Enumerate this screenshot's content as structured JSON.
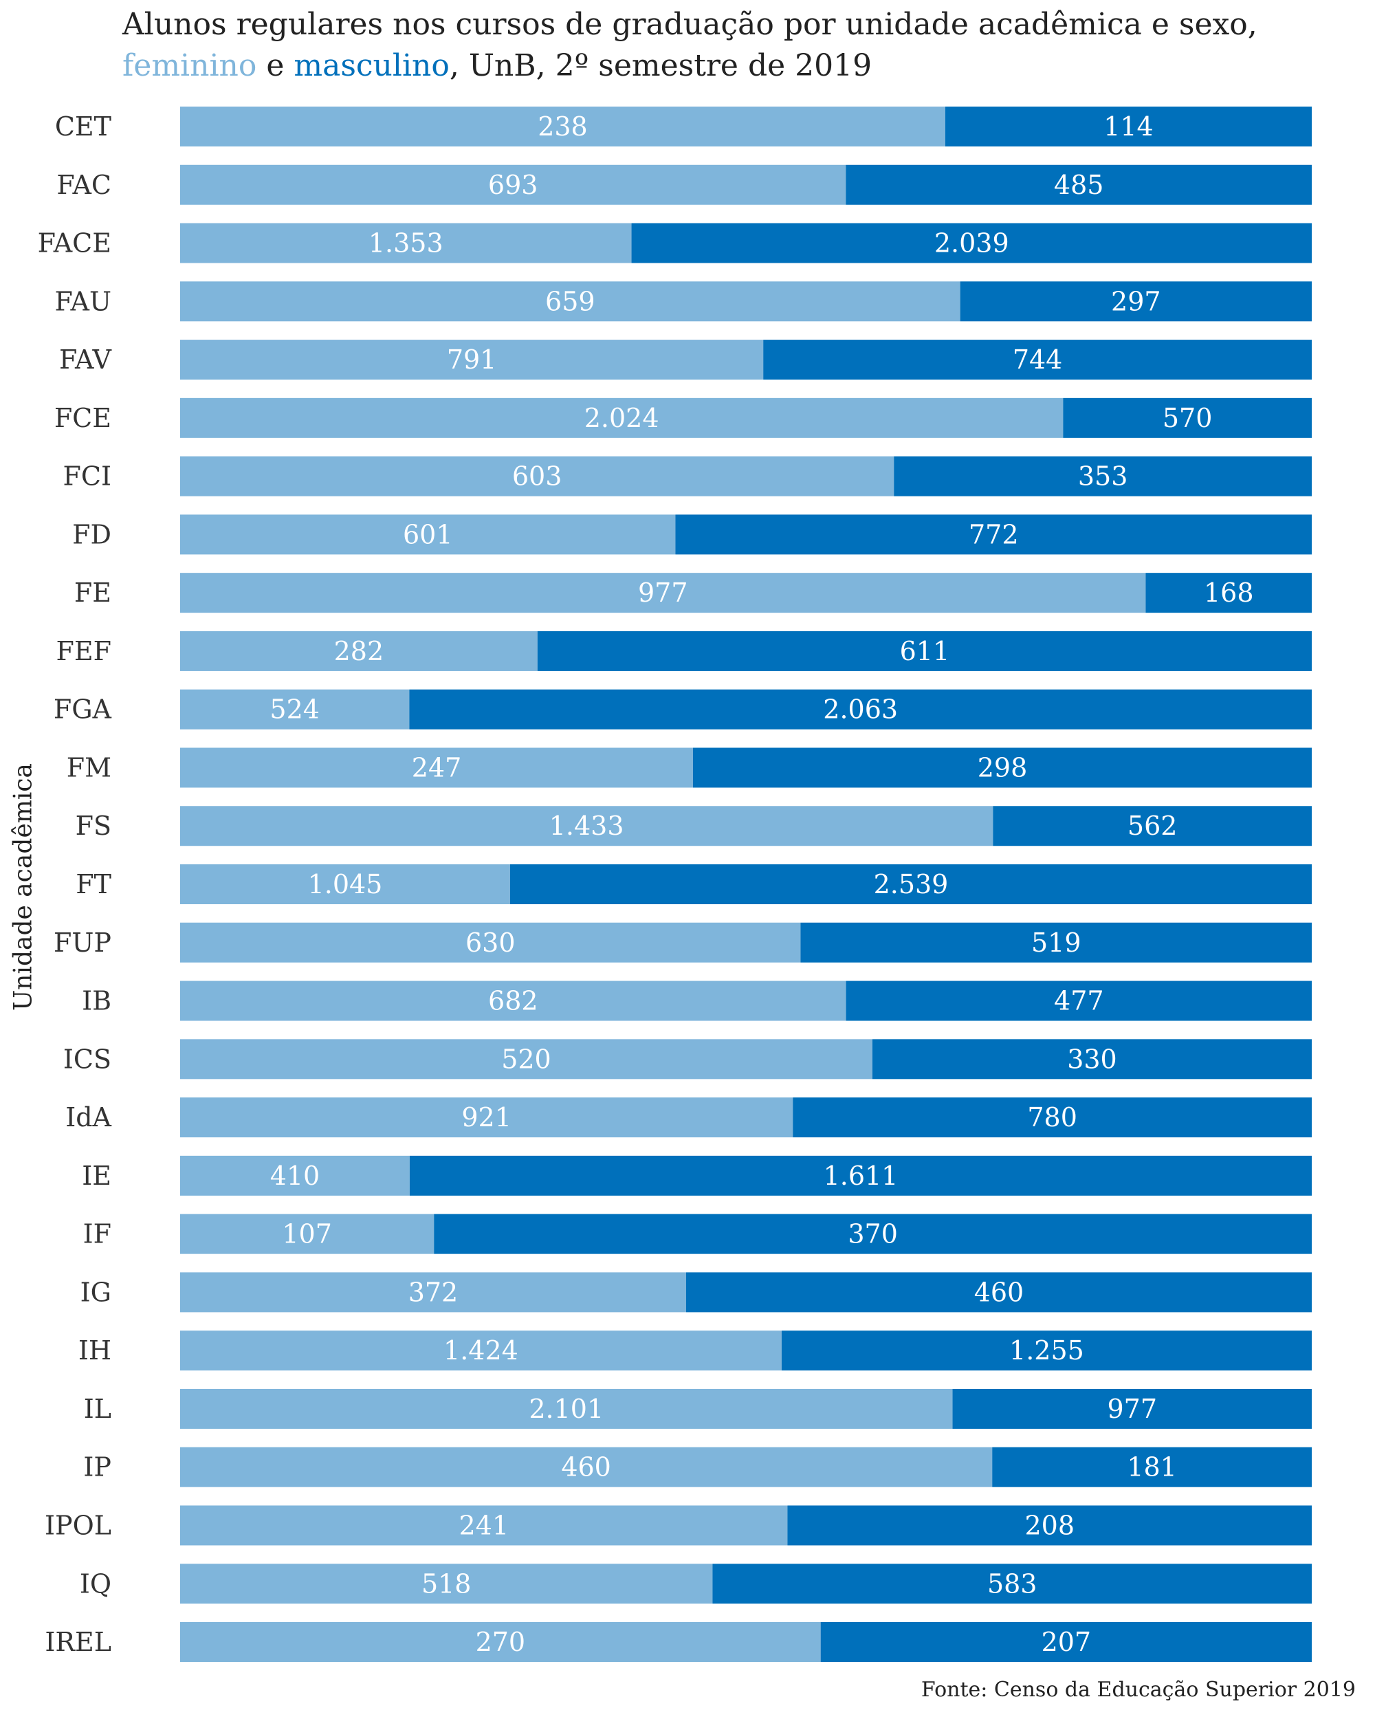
{
  "title": {
    "line1": "Alunos regulares nos cursos de graduação por unidade acadêmica e sexo,",
    "fem_word": "feminino",
    "joiner": " e ",
    "masc_word": "masculino",
    "rest": ", UnB, 2º semestre de 2019"
  },
  "source": "Fonte: Censo da Educação Superior 2019",
  "colors": {
    "feminino": "#7fb5db",
    "masculino": "#0070bb"
  },
  "chart_data": {
    "type": "bar",
    "orientation": "horizontal",
    "stacked": "100%",
    "title": "Alunos regulares nos cursos de graduação por unidade acadêmica e sexo, feminino e masculino, UnB, 2º semestre de 2019",
    "ylabel": "Unidade acadêmica",
    "xlabel": "",
    "categories": [
      "CET",
      "FAC",
      "FACE",
      "FAU",
      "FAV",
      "FCE",
      "FCI",
      "FD",
      "FE",
      "FEF",
      "FGA",
      "FM",
      "FS",
      "FT",
      "FUP",
      "IB",
      "ICS",
      "IdA",
      "IE",
      "IF",
      "IG",
      "IH",
      "IL",
      "IP",
      "IPOL",
      "IQ",
      "IREL"
    ],
    "series": [
      {
        "name": "feminino",
        "values": [
          238,
          693,
          1353,
          659,
          791,
          2024,
          603,
          601,
          977,
          282,
          524,
          247,
          1433,
          1045,
          630,
          682,
          520,
          921,
          410,
          107,
          372,
          1424,
          2101,
          460,
          241,
          518,
          270
        ]
      },
      {
        "name": "masculino",
        "values": [
          114,
          485,
          2039,
          297,
          744,
          570,
          353,
          772,
          168,
          611,
          2063,
          298,
          562,
          2539,
          519,
          477,
          330,
          780,
          1611,
          370,
          460,
          1255,
          977,
          181,
          208,
          583,
          207
        ]
      }
    ],
    "value_labels": {
      "feminino": [
        "238",
        "693",
        "1.353",
        "659",
        "791",
        "2.024",
        "603",
        "601",
        "977",
        "282",
        "524",
        "247",
        "1.433",
        "1.045",
        "630",
        "682",
        "520",
        "921",
        "410",
        "107",
        "372",
        "1.424",
        "2.101",
        "460",
        "241",
        "518",
        "270"
      ],
      "masculino": [
        "114",
        "485",
        "2.039",
        "297",
        "744",
        "570",
        "353",
        "772",
        "168",
        "611",
        "2.063",
        "298",
        "562",
        "2.539",
        "519",
        "477",
        "330",
        "780",
        "1.611",
        "370",
        "460",
        "1.255",
        "977",
        "181",
        "208",
        "583",
        "207"
      ]
    },
    "grid": false,
    "legend": "in-title"
  }
}
